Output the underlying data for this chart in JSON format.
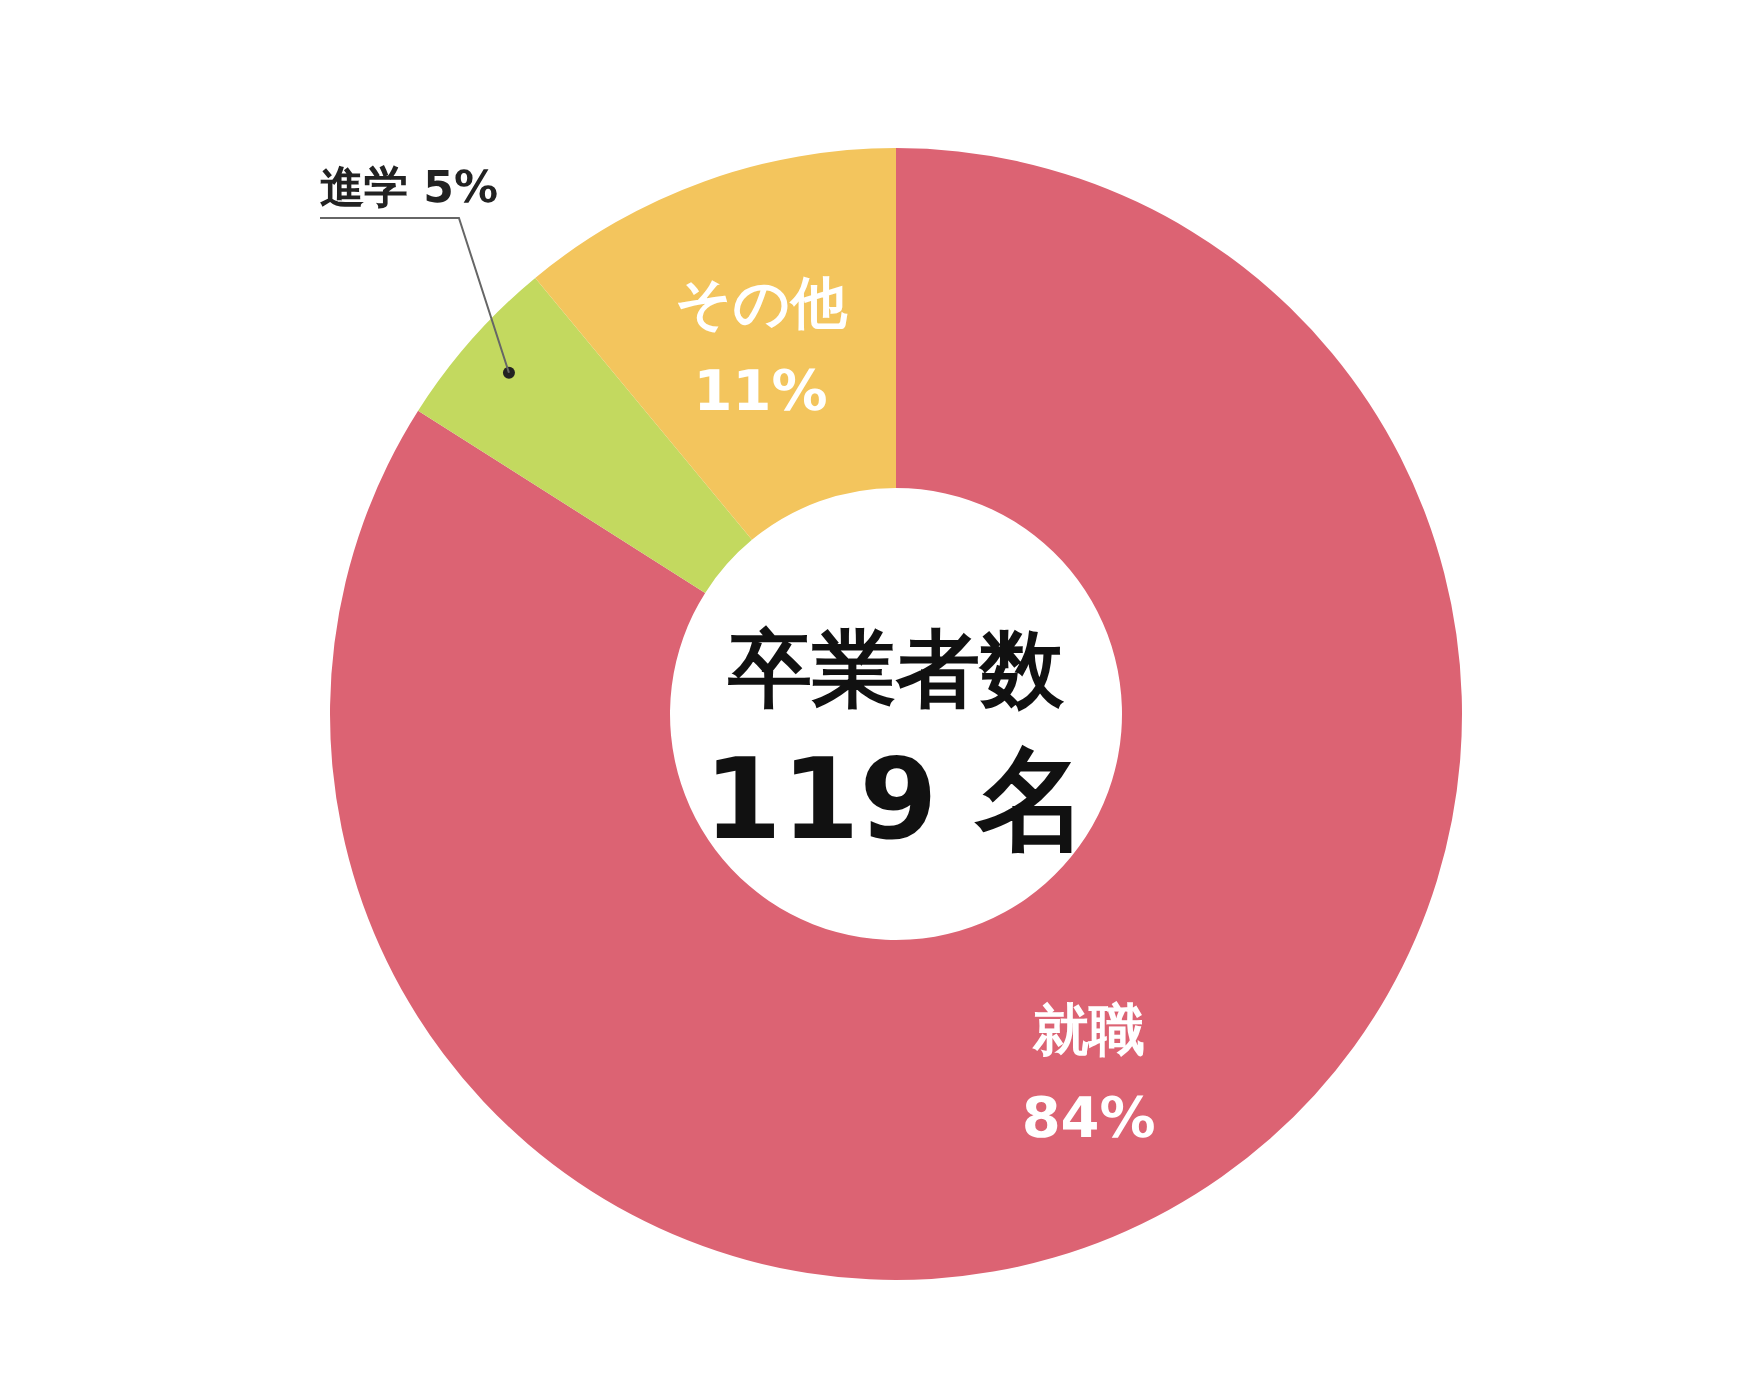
{
  "chart_data": {
    "type": "donut",
    "categories": [
      "就職",
      "進学",
      "その他"
    ],
    "values": [
      84,
      5,
      11
    ],
    "colors": [
      "#dc6373",
      "#c3d95f",
      "#f3c55d"
    ],
    "value_labels": [
      "84%",
      "5%",
      "11%"
    ],
    "annotations": [
      "卒業者数",
      "119 名"
    ]
  }
}
